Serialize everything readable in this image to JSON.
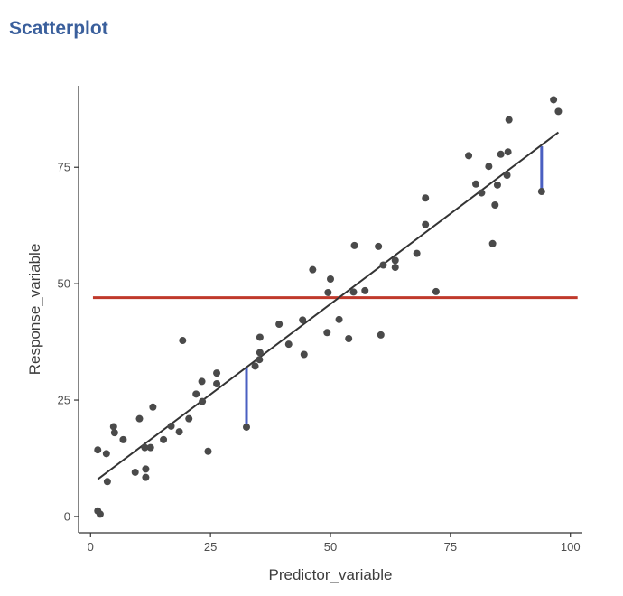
{
  "page": {
    "title": "Scatterplot"
  },
  "colors": {
    "point": "#4a4a4a",
    "regression": "#333333",
    "mean_line": "#c0392b",
    "residual": "#4a5fc1",
    "axis": "#333333",
    "title": "#3a5f9c"
  },
  "chart_data": {
    "type": "scatter",
    "title": "",
    "xlabel": "Predictor_variable",
    "ylabel": "Response_variable",
    "xlim": [
      -2.5,
      102.5
    ],
    "ylim": [
      -3.5,
      92.5
    ],
    "xticks": [
      0,
      25,
      50,
      75,
      100
    ],
    "yticks": [
      0,
      25,
      50,
      75
    ],
    "grid": false,
    "legend": "none",
    "points": [
      [
        1.5,
        1.2
      ],
      [
        2.0,
        0.5
      ],
      [
        1.5,
        14.3
      ],
      [
        3.3,
        13.5
      ],
      [
        3.5,
        7.5
      ],
      [
        4.8,
        19.3
      ],
      [
        5.0,
        18.0
      ],
      [
        6.8,
        16.5
      ],
      [
        9.3,
        9.5
      ],
      [
        10.2,
        21.0
      ],
      [
        11.3,
        14.8
      ],
      [
        11.5,
        10.2
      ],
      [
        11.5,
        8.4
      ],
      [
        12.5,
        14.8
      ],
      [
        13.0,
        23.5
      ],
      [
        15.2,
        16.5
      ],
      [
        16.8,
        19.4
      ],
      [
        18.5,
        18.2
      ],
      [
        19.2,
        37.8
      ],
      [
        20.5,
        21.0
      ],
      [
        22.0,
        26.3
      ],
      [
        23.2,
        29.0
      ],
      [
        23.3,
        24.7
      ],
      [
        24.5,
        14.0
      ],
      [
        26.3,
        28.5
      ],
      [
        26.3,
        30.8
      ],
      [
        32.5,
        19.2
      ],
      [
        34.3,
        32.3
      ],
      [
        35.2,
        33.7
      ],
      [
        35.3,
        35.2
      ],
      [
        35.3,
        38.5
      ],
      [
        39.3,
        41.3
      ],
      [
        41.3,
        37.0
      ],
      [
        44.2,
        42.2
      ],
      [
        44.5,
        34.8
      ],
      [
        46.3,
        53.0
      ],
      [
        49.3,
        39.5
      ],
      [
        49.5,
        48.1
      ],
      [
        50.0,
        51.0
      ],
      [
        51.8,
        42.3
      ],
      [
        53.8,
        38.2
      ],
      [
        54.8,
        48.2
      ],
      [
        55.0,
        58.2
      ],
      [
        57.2,
        48.5
      ],
      [
        60.0,
        58.0
      ],
      [
        60.5,
        39.0
      ],
      [
        61.0,
        54.0
      ],
      [
        63.5,
        55.0
      ],
      [
        63.5,
        53.5
      ],
      [
        68.0,
        56.5
      ],
      [
        69.8,
        68.4
      ],
      [
        69.8,
        62.7
      ],
      [
        72.0,
        48.3
      ],
      [
        78.8,
        77.5
      ],
      [
        80.3,
        71.4
      ],
      [
        81.5,
        69.5
      ],
      [
        83.0,
        75.2
      ],
      [
        83.8,
        58.6
      ],
      [
        84.3,
        66.9
      ],
      [
        84.8,
        71.2
      ],
      [
        85.5,
        77.8
      ],
      [
        86.8,
        73.3
      ],
      [
        87.0,
        78.3
      ],
      [
        87.2,
        85.2
      ],
      [
        94.0,
        69.8
      ],
      [
        96.5,
        89.5
      ],
      [
        97.5,
        87.0
      ]
    ],
    "regression_line": {
      "x": [
        1.5,
        97.5
      ],
      "y": [
        8.0,
        82.5
      ]
    },
    "mean_line": {
      "x": [
        0.5,
        101.5
      ],
      "y": 47.0
    },
    "residuals": [
      {
        "x": 32.5,
        "y_from": 19.2,
        "y_to": 32.0
      },
      {
        "x": 94.0,
        "y_from": 69.8,
        "y_to": 79.5
      }
    ]
  }
}
